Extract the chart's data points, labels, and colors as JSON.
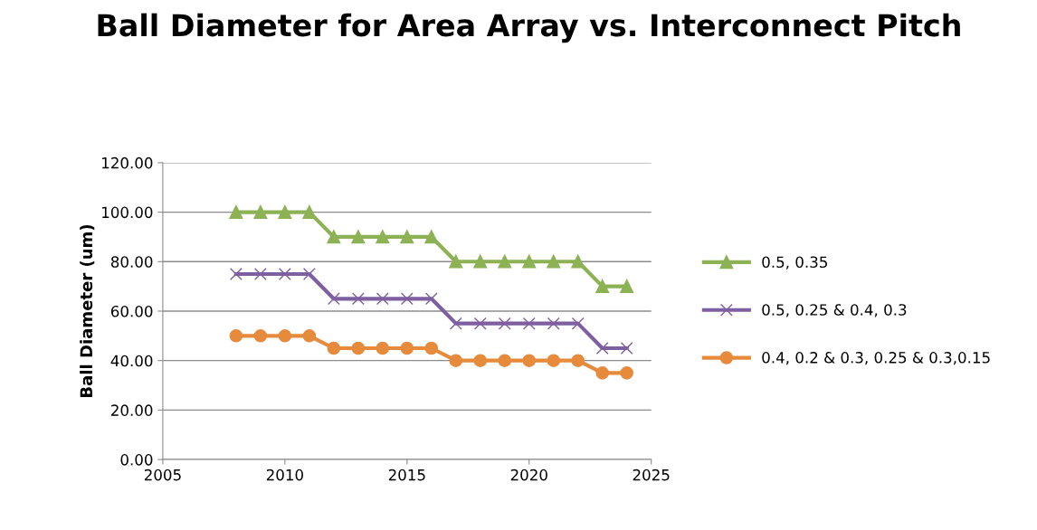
{
  "chart_data": {
    "type": "line",
    "title": "Ball Diameter for Area Array vs. Interconnect Pitch",
    "ylabel": "Ball Diameter (um)",
    "x": [
      2008,
      2009,
      2010,
      2011,
      2012,
      2013,
      2014,
      2015,
      2016,
      2017,
      2018,
      2019,
      2020,
      2021,
      2022,
      2023,
      2024
    ],
    "series": [
      {
        "name": "0.5, 0.35",
        "color": "#8db255",
        "marker": "triangle",
        "values": [
          100,
          100,
          100,
          100,
          90,
          90,
          90,
          90,
          90,
          80,
          80,
          80,
          80,
          80,
          80,
          70,
          70
        ]
      },
      {
        "name": "0.5, 0.25 & 0.4, 0.3",
        "color": "#7e5fa0",
        "marker": "cross",
        "values": [
          75,
          75,
          75,
          75,
          65,
          65,
          65,
          65,
          65,
          55,
          55,
          55,
          55,
          55,
          55,
          45,
          45
        ]
      },
      {
        "name": "0.4, 0.2 & 0.3, 0.25 & 0.3,0.15",
        "color": "#e68a3c",
        "marker": "circle",
        "values": [
          50,
          50,
          50,
          50,
          45,
          45,
          45,
          45,
          45,
          40,
          40,
          40,
          40,
          40,
          40,
          35,
          35
        ]
      }
    ],
    "xlim": [
      2005,
      2025
    ],
    "xticks": [
      2005,
      2010,
      2015,
      2020,
      2025
    ],
    "ylim": [
      0,
      120
    ],
    "yticks": [
      {
        "value": 0,
        "label": "0.00"
      },
      {
        "value": 20,
        "label": "20.00"
      },
      {
        "value": 40,
        "label": "40.00"
      },
      {
        "value": 60,
        "label": "60.00"
      },
      {
        "value": 80,
        "label": "80.00"
      },
      {
        "value": 100,
        "label": "100.00"
      },
      {
        "value": 120,
        "label": "120.00"
      }
    ],
    "grid": "y",
    "legend": "right",
    "line_style": "solid"
  }
}
